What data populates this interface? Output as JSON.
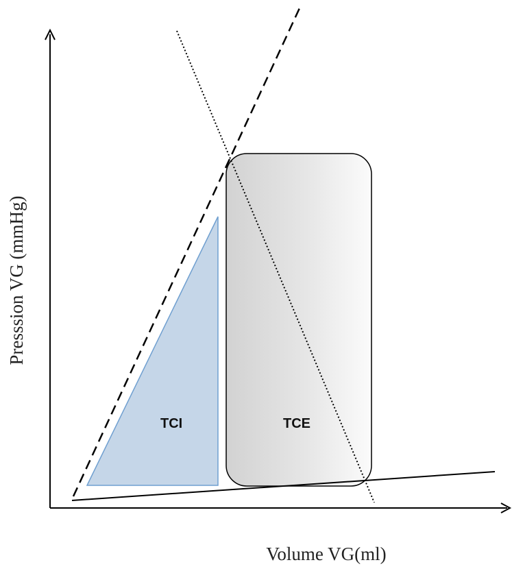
{
  "diagram": {
    "y_axis_label": "Presssion VG (mmHg)",
    "x_axis_label": "Volume VG(ml)",
    "regions": {
      "tci": "TCI",
      "tce": "TCE"
    },
    "colors": {
      "axis": "#000000",
      "tci_fill": "#c5d6e8",
      "tci_stroke": "#6f9fd0",
      "tce_fill_light": "#fafafa",
      "tce_fill_dark": "#d4d4d4",
      "line": "#000000"
    }
  }
}
